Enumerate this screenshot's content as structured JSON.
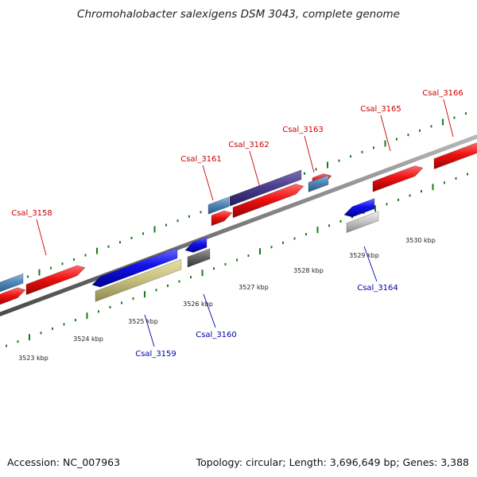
{
  "title": "Chromohalobacter salexigens DSM 3043, complete genome",
  "footer": {
    "accession": "Accession: NC_007963",
    "summary": "Topology: circular; Length: 3,696,649 bp; Genes: 3,388"
  },
  "colors": {
    "forward_label": "#cc0000",
    "reverse_label": "#0000aa",
    "backbone": "#808080",
    "tick": "#1a7a1a"
  },
  "scale": {
    "unit": "kbp",
    "ticks": [
      {
        "label": "3523 kbp"
      },
      {
        "label": "3524 kbp"
      },
      {
        "label": "3525 kbp"
      },
      {
        "label": "3526 kbp"
      },
      {
        "label": "3527 kbp"
      },
      {
        "label": "3528 kbp"
      },
      {
        "label": "3529 kbp"
      },
      {
        "label": "3530 kbp"
      }
    ]
  },
  "genes": [
    {
      "id": "Csal_3158",
      "strand": "forward"
    },
    {
      "id": "Csal_3159",
      "strand": "reverse"
    },
    {
      "id": "Csal_3160",
      "strand": "reverse"
    },
    {
      "id": "Csal_3161",
      "strand": "forward"
    },
    {
      "id": "Csal_3162",
      "strand": "forward"
    },
    {
      "id": "Csal_3163",
      "strand": "forward"
    },
    {
      "id": "Csal_3164",
      "strand": "reverse"
    },
    {
      "id": "Csal_3165",
      "strand": "forward"
    },
    {
      "id": "Csal_3166",
      "strand": "forward"
    }
  ]
}
